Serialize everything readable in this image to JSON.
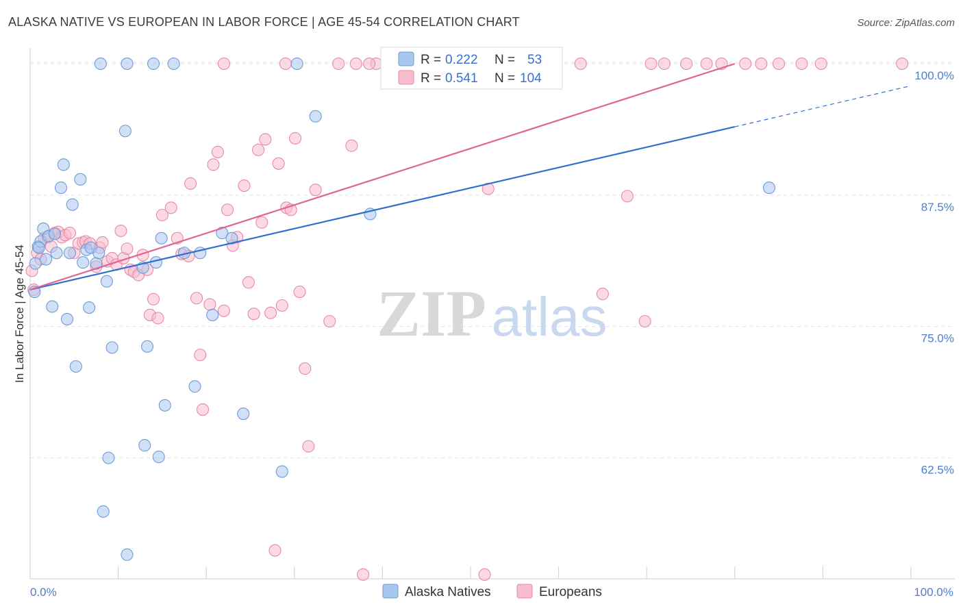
{
  "title": "ALASKA NATIVE VS EUROPEAN IN LABOR FORCE | AGE 45-54 CORRELATION CHART",
  "source": "Source: ZipAtlas.com",
  "watermark": {
    "zip": "ZIP",
    "atlas": "atlas"
  },
  "chart_data": {
    "type": "scatter",
    "title": "ALASKA NATIVE VS EUROPEAN IN LABOR FORCE | AGE 45-54 CORRELATION CHART",
    "xlabel": "",
    "ylabel": "In Labor Force | Age 45-54",
    "xlim": [
      0,
      100
    ],
    "ylim": [
      51,
      101.5
    ],
    "x_tick_labels": [
      "0.0%",
      "100.0%"
    ],
    "y_ticks": [
      62.5,
      75.0,
      87.5,
      100.0
    ],
    "y_tick_labels": [
      "62.5%",
      "75.0%",
      "87.5%",
      "100.0%"
    ],
    "grid": true,
    "legend_placement": "top-center",
    "series": [
      {
        "name": "Alaska Natives",
        "color": "#a9c6ee",
        "stroke": "#6f9ad8",
        "line_color": "#2f6fcf",
        "R": "0.222",
        "N": "53",
        "trend": {
          "x0": 0,
          "y0": 78.5,
          "x1": 80,
          "y1": 94.0,
          "x_dash_end": 100,
          "y_dash_end": 97.9
        },
        "points": [
          [
            0.5,
            78.3
          ],
          [
            0.6,
            81.0
          ],
          [
            0.9,
            82.6
          ],
          [
            1.2,
            83.1
          ],
          [
            1.5,
            84.3
          ],
          [
            1.8,
            81.4
          ],
          [
            2.1,
            83.6
          ],
          [
            2.5,
            76.9
          ],
          [
            3.0,
            82.0
          ],
          [
            3.5,
            88.2
          ],
          [
            3.8,
            90.4
          ],
          [
            4.2,
            75.7
          ],
          [
            4.8,
            86.6
          ],
          [
            5.2,
            71.2
          ],
          [
            5.7,
            89.0
          ],
          [
            6.0,
            81.1
          ],
          [
            6.4,
            82.3
          ],
          [
            6.7,
            76.8
          ],
          [
            6.9,
            82.5
          ],
          [
            7.5,
            81.0
          ],
          [
            7.8,
            82.0
          ],
          [
            8.3,
            57.4
          ],
          [
            8.7,
            79.3
          ],
          [
            8.9,
            62.5
          ],
          [
            9.3,
            73.0
          ],
          [
            10.8,
            93.6
          ],
          [
            11.0,
            53.3
          ],
          [
            12.8,
            80.6
          ],
          [
            13.0,
            63.7
          ],
          [
            13.3,
            73.1
          ],
          [
            14.3,
            81.1
          ],
          [
            14.6,
            62.6
          ],
          [
            14.9,
            83.4
          ],
          [
            15.3,
            67.5
          ],
          [
            17.5,
            82.0
          ],
          [
            18.7,
            69.3
          ],
          [
            19.3,
            82.0
          ],
          [
            20.7,
            76.1
          ],
          [
            21.8,
            83.9
          ],
          [
            22.9,
            83.4
          ],
          [
            24.2,
            66.7
          ],
          [
            28.6,
            61.2
          ],
          [
            30.3,
            100.0
          ],
          [
            32.4,
            95.0
          ],
          [
            38.6,
            85.7
          ],
          [
            83.9,
            88.2
          ],
          [
            8.0,
            100.0
          ],
          [
            11.0,
            100.0
          ],
          [
            14.0,
            100.0
          ],
          [
            16.3,
            100.0
          ],
          [
            4.5,
            82.0
          ],
          [
            2.8,
            83.8
          ],
          [
            1.0,
            82.5
          ]
        ]
      },
      {
        "name": "Europeans",
        "color": "#f7bccd",
        "stroke": "#e68aa6",
        "line_color": "#e0648f",
        "R": "0.541",
        "N": "104",
        "trend": {
          "x0": 0,
          "y0": 78.5,
          "x1": 80,
          "y1": 100.0
        },
        "points": [
          [
            0.2,
            80.3
          ],
          [
            0.4,
            78.5
          ],
          [
            0.8,
            82.0
          ],
          [
            1.2,
            81.4
          ],
          [
            1.6,
            83.4
          ],
          [
            2.0,
            83.5
          ],
          [
            2.4,
            82.6
          ],
          [
            2.8,
            83.9
          ],
          [
            3.2,
            84.0
          ],
          [
            3.6,
            83.5
          ],
          [
            4.0,
            83.7
          ],
          [
            4.5,
            83.9
          ],
          [
            5.0,
            82.0
          ],
          [
            5.5,
            82.9
          ],
          [
            6.0,
            83.0
          ],
          [
            6.3,
            83.1
          ],
          [
            6.8,
            82.9
          ],
          [
            7.5,
            80.7
          ],
          [
            7.9,
            82.5
          ],
          [
            8.2,
            83.0
          ],
          [
            8.8,
            81.2
          ],
          [
            9.3,
            81.5
          ],
          [
            9.8,
            80.9
          ],
          [
            10.3,
            84.1
          ],
          [
            10.6,
            81.5
          ],
          [
            11.0,
            82.4
          ],
          [
            11.4,
            80.4
          ],
          [
            11.8,
            80.2
          ],
          [
            12.3,
            79.9
          ],
          [
            12.8,
            81.8
          ],
          [
            13.3,
            80.4
          ],
          [
            13.6,
            76.1
          ],
          [
            14.0,
            77.6
          ],
          [
            14.5,
            75.8
          ],
          [
            15.0,
            85.6
          ],
          [
            16.0,
            86.3
          ],
          [
            16.7,
            83.4
          ],
          [
            17.2,
            81.9
          ],
          [
            18.0,
            81.7
          ],
          [
            18.2,
            88.6
          ],
          [
            18.9,
            77.7
          ],
          [
            19.3,
            72.3
          ],
          [
            19.6,
            67.1
          ],
          [
            20.4,
            77.1
          ],
          [
            20.8,
            90.4
          ],
          [
            21.3,
            91.6
          ],
          [
            22.0,
            76.5
          ],
          [
            22.4,
            86.1
          ],
          [
            23.0,
            82.7
          ],
          [
            23.5,
            83.5
          ],
          [
            24.3,
            88.4
          ],
          [
            24.8,
            79.2
          ],
          [
            25.4,
            76.2
          ],
          [
            25.9,
            91.8
          ],
          [
            26.3,
            84.9
          ],
          [
            26.7,
            92.8
          ],
          [
            27.3,
            76.3
          ],
          [
            27.8,
            53.7
          ],
          [
            28.2,
            90.5
          ],
          [
            28.6,
            77.0
          ],
          [
            29.1,
            86.3
          ],
          [
            29.6,
            86.1
          ],
          [
            30.1,
            92.9
          ],
          [
            30.6,
            78.3
          ],
          [
            31.2,
            71.0
          ],
          [
            31.6,
            63.6
          ],
          [
            32.4,
            88.0
          ],
          [
            34.0,
            75.5
          ],
          [
            35.0,
            100.0
          ],
          [
            36.5,
            92.2
          ],
          [
            37.0,
            100.0
          ],
          [
            37.8,
            51.4
          ],
          [
            39.3,
            100.0
          ],
          [
            41.3,
            100.0
          ],
          [
            42.5,
            100.0
          ],
          [
            43.7,
            100.0
          ],
          [
            45.0,
            100.0
          ],
          [
            46.8,
            100.0
          ],
          [
            48.2,
            100.0
          ],
          [
            50.0,
            100.0
          ],
          [
            51.6,
            51.4
          ],
          [
            52.0,
            88.1
          ],
          [
            56.0,
            100.0
          ],
          [
            58.5,
            100.0
          ],
          [
            62.5,
            100.0
          ],
          [
            65.0,
            78.1
          ],
          [
            67.8,
            87.4
          ],
          [
            69.8,
            75.5
          ],
          [
            70.5,
            100.0
          ],
          [
            72.0,
            100.0
          ],
          [
            74.5,
            100.0
          ],
          [
            76.8,
            100.0
          ],
          [
            78.5,
            100.0
          ],
          [
            81.2,
            100.0
          ],
          [
            83.0,
            100.0
          ],
          [
            85.0,
            100.0
          ],
          [
            87.6,
            100.0
          ],
          [
            89.8,
            100.0
          ],
          [
            99.0,
            100.0
          ],
          [
            29.0,
            100.0
          ],
          [
            38.5,
            100.0
          ],
          [
            56.5,
            100.0
          ],
          [
            22.0,
            100.0
          ],
          [
            58.0,
            100.0
          ]
        ]
      }
    ]
  },
  "legend": {
    "r_label": "R =",
    "n_label": "N ="
  }
}
